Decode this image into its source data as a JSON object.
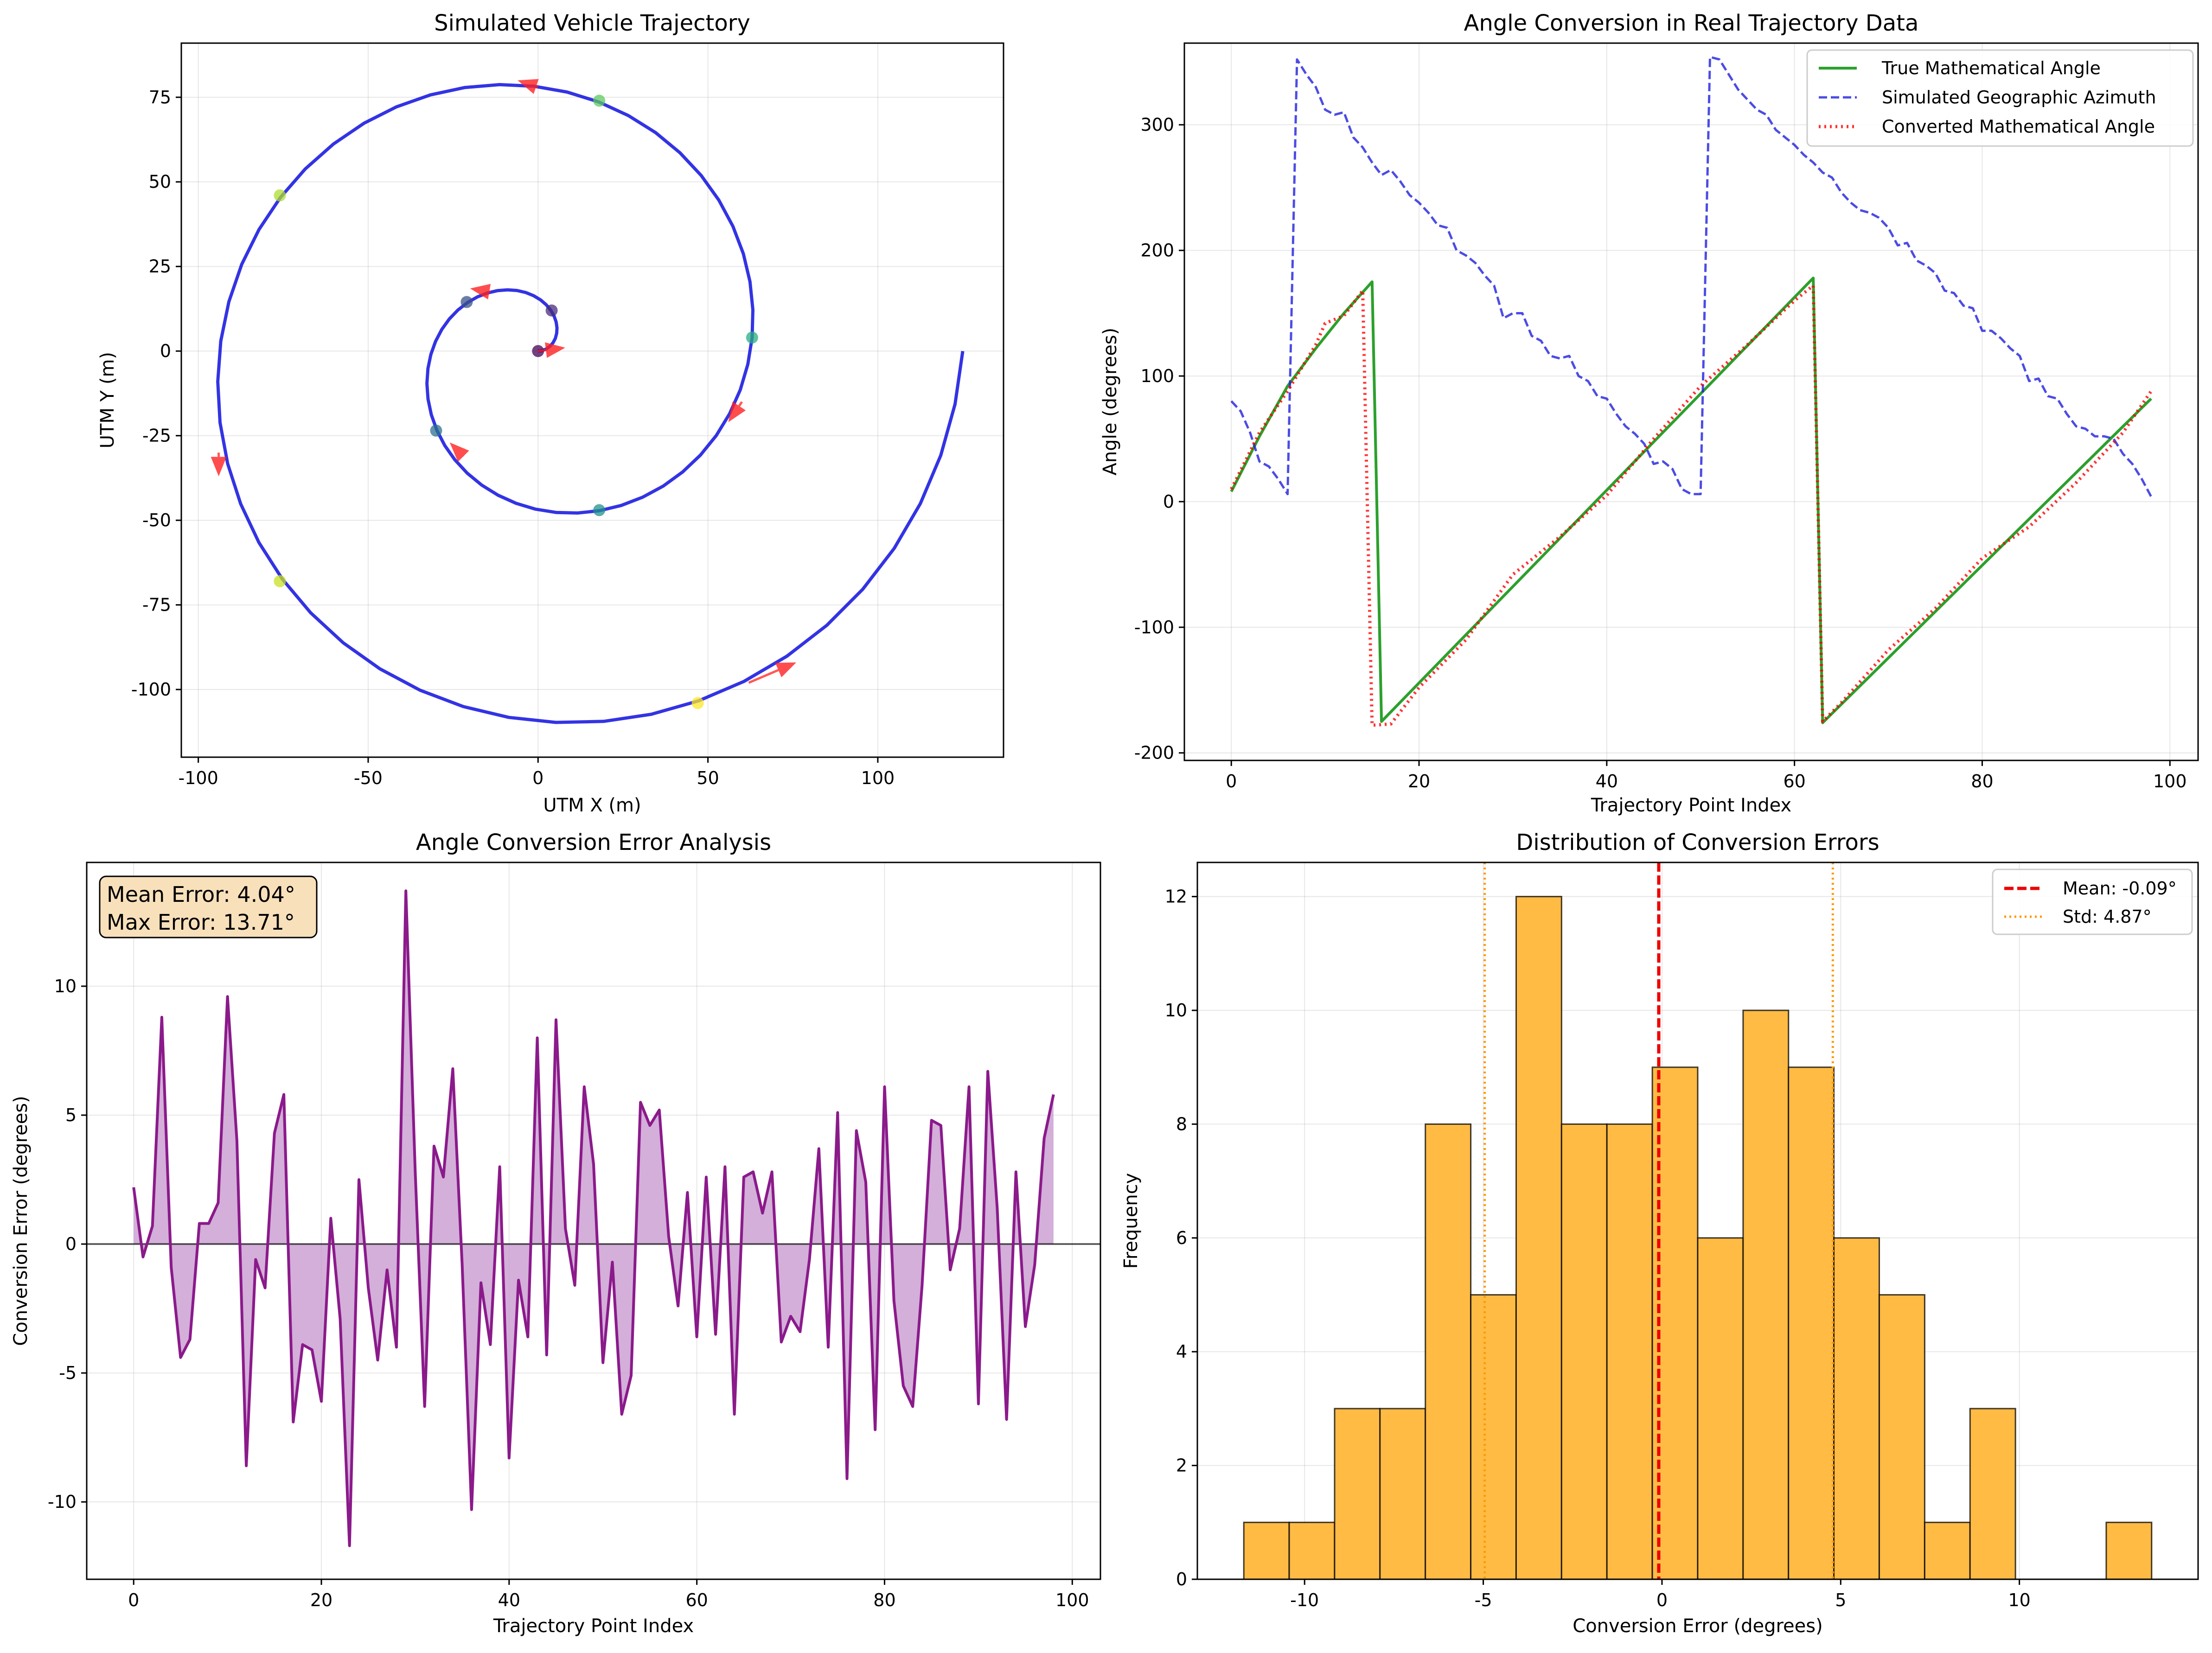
{
  "colors": {
    "spiral": "#0000dd",
    "arrow": "#ff2020",
    "true_angle": "#2ca02c",
    "geo_azimuth": "#1f1fdd",
    "converted": "#ff0000",
    "error_line": "#8b1a8b",
    "error_fill": "#c89bd0",
    "hist_bar": "#ffbb44",
    "mean_line": "#ee0000",
    "std_line": "#ff9900",
    "annot_box": "#f8e0bb"
  },
  "chart_data": [
    {
      "id": "trajectory",
      "type": "line",
      "title": "Simulated Vehicle Trajectory",
      "xlabel": "UTM X (m)",
      "ylabel": "UTM Y (m)",
      "xlim": [
        -105,
        137
      ],
      "ylim": [
        -120,
        91
      ],
      "xticks": [
        -100,
        -50,
        0,
        50,
        100
      ],
      "yticks": [
        -100,
        -75,
        -50,
        -25,
        0,
        25,
        50,
        75
      ],
      "xtick_labels": [
        "-100",
        "-50",
        "0",
        "50",
        "100"
      ],
      "ytick_labels": [
        "-100",
        "-75",
        "-50",
        "-25",
        "0",
        "25",
        "50",
        "75"
      ],
      "spiral": {
        "turns": 2,
        "r_max": 125,
        "num_points": 100
      },
      "markers": [
        {
          "x": 0,
          "y": 0,
          "color": "#440154"
        },
        {
          "x": 4,
          "y": 12,
          "color": "#472d7b"
        },
        {
          "x": -21,
          "y": 14.5,
          "color": "#3b528b"
        },
        {
          "x": -30,
          "y": -23.5,
          "color": "#2c728e"
        },
        {
          "x": 18,
          "y": -47,
          "color": "#21918c"
        },
        {
          "x": 63,
          "y": 4,
          "color": "#28ae80"
        },
        {
          "x": 18,
          "y": 74,
          "color": "#5ec962"
        },
        {
          "x": -76,
          "y": 46,
          "color": "#addc30"
        },
        {
          "x": -76,
          "y": -68,
          "color": "#c8e020"
        },
        {
          "x": 47,
          "y": -104,
          "color": "#fde725"
        }
      ],
      "arrows": [
        {
          "x": 0,
          "y": 0,
          "dx": 8,
          "dy": 1
        },
        {
          "x": -14,
          "y": 17.5,
          "dx": -6,
          "dy": 1
        },
        {
          "x": -22,
          "y": -31,
          "dx": -4,
          "dy": 4
        },
        {
          "x": 60,
          "y": -15,
          "dx": -4,
          "dy": -6
        },
        {
          "x": 0,
          "y": 78,
          "dx": -6,
          "dy": 2
        },
        {
          "x": -94,
          "y": -30,
          "dx": 0,
          "dy": -7
        },
        {
          "x": 62,
          "y": -98,
          "dx": 14,
          "dy": 6
        }
      ]
    },
    {
      "id": "angles",
      "type": "line",
      "title": "Angle Conversion in Real Trajectory Data",
      "xlabel": "Trajectory Point Index",
      "ylabel": "Angle (degrees)",
      "xlim": [
        -5,
        103
      ],
      "ylim": [
        -206,
        365
      ],
      "xticks": [
        0,
        20,
        40,
        60,
        80,
        100
      ],
      "yticks": [
        -200,
        -100,
        0,
        100,
        200,
        300
      ],
      "xtick_labels": [
        "0",
        "20",
        "40",
        "60",
        "80",
        "100"
      ],
      "ytick_labels": [
        "-200",
        "-100",
        "0",
        "100",
        "200",
        "300"
      ],
      "legend": {
        "position": "top-right",
        "entries": [
          "True Mathematical Angle",
          "Simulated Geographic Azimuth",
          "Converted Mathematical Angle"
        ]
      },
      "series": [
        {
          "name": "True Mathematical Angle",
          "style": "solid",
          "points": [
            [
              0,
              8
            ],
            [
              3,
              52
            ],
            [
              6,
              92
            ],
            [
              9,
              122
            ],
            [
              12,
              150
            ],
            [
              15,
              175
            ],
            [
              16,
              -175
            ],
            [
              62,
              178
            ],
            [
              63,
              -176
            ],
            [
              98,
              82
            ]
          ]
        },
        {
          "name": "Simulated Geographic Azimuth",
          "style": "dashed",
          "points": [
            [
              0,
              80
            ],
            [
              1,
              72
            ],
            [
              2,
              55
            ],
            [
              3,
              32
            ],
            [
              4,
              28
            ],
            [
              5,
              18
            ],
            [
              6,
              6
            ],
            [
              7,
              352
            ],
            [
              8,
              340
            ],
            [
              9,
              330
            ],
            [
              10,
              312
            ],
            [
              11,
              308
            ],
            [
              12,
              310
            ],
            [
              13,
              290
            ],
            [
              14,
              282
            ],
            [
              15,
              270
            ],
            [
              16,
              260
            ],
            [
              17,
              264
            ],
            [
              18,
              255
            ],
            [
              19,
              244
            ],
            [
              20,
              238
            ],
            [
              21,
              230
            ],
            [
              22,
              220
            ],
            [
              23,
              218
            ],
            [
              24,
              200
            ],
            [
              25,
              196
            ],
            [
              26,
              190
            ],
            [
              27,
              180
            ],
            [
              28,
              172
            ],
            [
              29,
              146
            ],
            [
              30,
              150
            ],
            [
              31,
              150
            ],
            [
              32,
              132
            ],
            [
              33,
              128
            ],
            [
              34,
              116
            ],
            [
              35,
              114
            ],
            [
              36,
              116
            ],
            [
              37,
              100
            ],
            [
              38,
              96
            ],
            [
              39,
              84
            ],
            [
              40,
              82
            ],
            [
              41,
              70
            ],
            [
              42,
              60
            ],
            [
              43,
              54
            ],
            [
              44,
              46
            ],
            [
              45,
              30
            ],
            [
              46,
              32
            ],
            [
              47,
              26
            ],
            [
              48,
              10
            ],
            [
              49,
              6
            ],
            [
              50,
              6
            ],
            [
              51,
              354
            ],
            [
              52,
              352
            ],
            [
              53,
              340
            ],
            [
              54,
              328
            ],
            [
              55,
              320
            ],
            [
              56,
              312
            ],
            [
              57,
              308
            ],
            [
              58,
              296
            ],
            [
              59,
              290
            ],
            [
              60,
              284
            ],
            [
              61,
              276
            ],
            [
              62,
              270
            ],
            [
              63,
              262
            ],
            [
              64,
              258
            ],
            [
              65,
              246
            ],
            [
              66,
              238
            ],
            [
              67,
              232
            ],
            [
              68,
              230
            ],
            [
              69,
              226
            ],
            [
              70,
              218
            ],
            [
              71,
              204
            ],
            [
              72,
              206
            ],
            [
              73,
              192
            ],
            [
              74,
              188
            ],
            [
              75,
              182
            ],
            [
              76,
              168
            ],
            [
              77,
              166
            ],
            [
              78,
              156
            ],
            [
              79,
              154
            ],
            [
              80,
              136
            ],
            [
              81,
              136
            ],
            [
              82,
              130
            ],
            [
              83,
              122
            ],
            [
              84,
              116
            ],
            [
              85,
              96
            ],
            [
              86,
              98
            ],
            [
              87,
              84
            ],
            [
              88,
              82
            ],
            [
              89,
              70
            ],
            [
              90,
              60
            ],
            [
              91,
              58
            ],
            [
              92,
              52
            ],
            [
              93,
              52
            ],
            [
              94,
              50
            ],
            [
              95,
              38
            ],
            [
              96,
              30
            ],
            [
              97,
              18
            ],
            [
              98,
              4
            ]
          ]
        },
        {
          "name": "Converted Mathematical Angle",
          "style": "dotted",
          "points": [
            [
              0,
              10
            ],
            [
              3,
              55
            ],
            [
              6,
              88
            ],
            [
              9,
              125
            ],
            [
              10,
              142
            ],
            [
              12,
              148
            ],
            [
              14,
              168
            ],
            [
              15,
              -178
            ],
            [
              17,
              -177
            ],
            [
              20,
              -148
            ],
            [
              25,
              -110
            ],
            [
              30,
              -58
            ],
            [
              35,
              -28
            ],
            [
              40,
              5
            ],
            [
              45,
              50
            ],
            [
              50,
              92
            ],
            [
              55,
              125
            ],
            [
              60,
              160
            ],
            [
              62,
              172
            ],
            [
              63,
              -175
            ],
            [
              65,
              -160
            ],
            [
              70,
              -118
            ],
            [
              75,
              -85
            ],
            [
              80,
              -45
            ],
            [
              85,
              -20
            ],
            [
              90,
              15
            ],
            [
              95,
              55
            ],
            [
              98,
              88
            ]
          ]
        }
      ]
    },
    {
      "id": "errors",
      "type": "area",
      "title": "Angle Conversion Error Analysis",
      "xlabel": "Trajectory Point Index",
      "ylabel": "Conversion Error (degrees)",
      "xlim": [
        -5,
        103
      ],
      "ylim": [
        -13,
        14.8
      ],
      "xticks": [
        0,
        20,
        40,
        60,
        80,
        100
      ],
      "yticks": [
        -10,
        -5,
        0,
        5,
        10
      ],
      "xtick_labels": [
        "0",
        "20",
        "40",
        "60",
        "80",
        "100"
      ],
      "ytick_labels": [
        "-10",
        "-5",
        "0",
        "5",
        "10"
      ],
      "annotation": [
        "Mean Error: 4.04°",
        "Max Error: 13.71°"
      ],
      "x": [
        0,
        1,
        2,
        3,
        4,
        5,
        6,
        7,
        8,
        9,
        10,
        11,
        12,
        13,
        14,
        15,
        16,
        17,
        18,
        19,
        20,
        21,
        22,
        23,
        24,
        25,
        26,
        27,
        28,
        29,
        30,
        31,
        32,
        33,
        34,
        35,
        36,
        37,
        38,
        39,
        40,
        41,
        42,
        43,
        44,
        45,
        46,
        47,
        48,
        49,
        50,
        51,
        52,
        53,
        54,
        55,
        56,
        57,
        58,
        59,
        60,
        61,
        62,
        63,
        64,
        65,
        66,
        67,
        68,
        69,
        70,
        71,
        72,
        73,
        74,
        75,
        76,
        77,
        78,
        79,
        80,
        81,
        82,
        83,
        84,
        85,
        86,
        87,
        88,
        89,
        90,
        91,
        92,
        93,
        94,
        95,
        96,
        97,
        98
      ],
      "values": [
        2.2,
        -0.5,
        0.7,
        8.8,
        -0.9,
        -4.4,
        -3.7,
        0.8,
        0.8,
        1.6,
        9.6,
        4.0,
        -8.6,
        -0.6,
        -1.7,
        4.3,
        5.8,
        -6.9,
        -3.9,
        -4.1,
        -6.1,
        1.0,
        -2.9,
        -11.7,
        2.5,
        -1.7,
        -4.5,
        -1.0,
        -4.0,
        13.7,
        2.8,
        -6.3,
        3.8,
        2.6,
        6.8,
        -0.8,
        -10.3,
        -1.5,
        -3.9,
        3.0,
        -8.3,
        -1.4,
        -3.6,
        8.0,
        -4.3,
        8.7,
        0.6,
        -1.6,
        6.1,
        3.1,
        -4.6,
        -0.7,
        -6.6,
        -5.1,
        5.5,
        4.6,
        5.2,
        0.3,
        -2.4,
        2.0,
        -3.6,
        2.6,
        -3.5,
        3.0,
        -6.6,
        2.6,
        2.8,
        1.2,
        2.8,
        -3.8,
        -2.8,
        -3.4,
        -0.6,
        3.7,
        -4.0,
        5.1,
        -9.1,
        4.4,
        2.4,
        -7.2,
        6.1,
        -2.2,
        -5.5,
        -6.3,
        -1.6,
        4.8,
        4.6,
        -1.0,
        0.6,
        6.1,
        -6.2,
        6.7,
        1.4,
        -6.8,
        2.8,
        -3.2,
        -0.8,
        4.1,
        5.8
      ]
    },
    {
      "id": "histogram",
      "type": "bar",
      "title": "Distribution of Conversion Errors",
      "xlabel": "Conversion Error (degrees)",
      "ylabel": "Frequency",
      "xlim": [
        -13,
        15
      ],
      "ylim": [
        0,
        12.6
      ],
      "xticks": [
        -10,
        -5,
        0,
        5,
        10
      ],
      "yticks": [
        0,
        2,
        4,
        6,
        8,
        10,
        12
      ],
      "xtick_labels": [
        "-10",
        "-5",
        "0",
        "5",
        "10"
      ],
      "ytick_labels": [
        "0",
        "2",
        "4",
        "6",
        "8",
        "10",
        "12"
      ],
      "bin_edges": [
        -11.7,
        -10.43,
        -9.16,
        -7.89,
        -6.62,
        -5.35,
        -4.08,
        -2.81,
        -1.54,
        -0.27,
        1.0,
        2.27,
        3.54,
        4.81,
        6.08,
        7.35,
        8.62,
        9.89,
        11.16,
        12.43,
        13.7
      ],
      "counts": [
        1,
        1,
        3,
        3,
        8,
        5,
        12,
        8,
        8,
        9,
        6,
        10,
        9,
        6,
        5,
        1,
        3,
        0,
        0,
        1
      ],
      "mean": -0.09,
      "std": 4.87,
      "legend": {
        "position": "top-right",
        "entries": [
          "Mean: -0.09°",
          "Std: 4.87°"
        ]
      }
    }
  ]
}
